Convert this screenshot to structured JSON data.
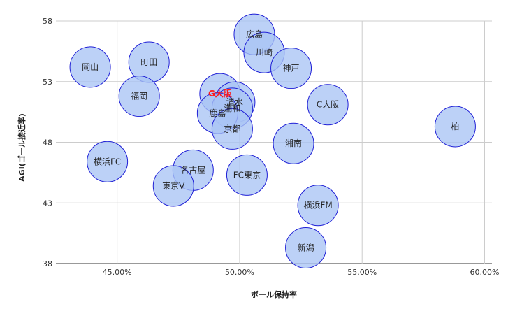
{
  "chart_data": {
    "type": "bubble",
    "title": "",
    "xlabel": "ボール保持率",
    "ylabel": "AGI(ゴール接近率)",
    "xlim": [
      0.425,
      0.603
    ],
    "ylim": [
      38,
      58
    ],
    "x_ticks": [
      0.45,
      0.5,
      0.55,
      0.6
    ],
    "x_tick_labels": [
      "45.00%",
      "50.00%",
      "55.00%",
      "60.00%"
    ],
    "y_ticks": [
      38,
      43,
      48,
      53,
      58
    ],
    "y_tick_labels": [
      "38",
      "43",
      "48",
      "53",
      "58"
    ],
    "grid": true,
    "legend": "none",
    "colors": {
      "bubble_fill": "#a9c4f5",
      "bubble_stroke": "#1f1fd6",
      "highlight_label": "#ff1a1a",
      "grid": "#cccccc",
      "axis": "#333333"
    },
    "points": [
      {
        "label": "広島",
        "x": 0.506,
        "y": 56.9,
        "highlight": false
      },
      {
        "label": "川崎",
        "x": 0.51,
        "y": 55.4,
        "highlight": false
      },
      {
        "label": "岡山",
        "x": 0.439,
        "y": 54.2,
        "highlight": false
      },
      {
        "label": "町田",
        "x": 0.463,
        "y": 54.6,
        "highlight": false
      },
      {
        "label": "神戸",
        "x": 0.521,
        "y": 54.1,
        "highlight": false
      },
      {
        "label": "福岡",
        "x": 0.459,
        "y": 51.8,
        "highlight": false
      },
      {
        "label": "G大阪",
        "x": 0.492,
        "y": 52.0,
        "highlight": true
      },
      {
        "label": "清水",
        "x": 0.498,
        "y": 51.3,
        "highlight": false
      },
      {
        "label": "浦和",
        "x": 0.497,
        "y": 50.8,
        "highlight": false
      },
      {
        "label": "鹿島",
        "x": 0.491,
        "y": 50.4,
        "highlight": false
      },
      {
        "label": "C大阪",
        "x": 0.536,
        "y": 51.1,
        "highlight": false
      },
      {
        "label": "柏",
        "x": 0.588,
        "y": 49.3,
        "highlight": false
      },
      {
        "label": "京都",
        "x": 0.497,
        "y": 49.1,
        "highlight": false
      },
      {
        "label": "湘南",
        "x": 0.522,
        "y": 47.9,
        "highlight": false
      },
      {
        "label": "横浜FC",
        "x": 0.446,
        "y": 46.4,
        "highlight": false
      },
      {
        "label": "名古屋",
        "x": 0.481,
        "y": 45.7,
        "highlight": false
      },
      {
        "label": "東京V",
        "x": 0.473,
        "y": 44.4,
        "highlight": false
      },
      {
        "label": "FC東京",
        "x": 0.503,
        "y": 45.3,
        "highlight": false
      },
      {
        "label": "横浜FM",
        "x": 0.532,
        "y": 42.8,
        "highlight": false
      },
      {
        "label": "新潟",
        "x": 0.527,
        "y": 39.3,
        "highlight": false
      }
    ]
  }
}
